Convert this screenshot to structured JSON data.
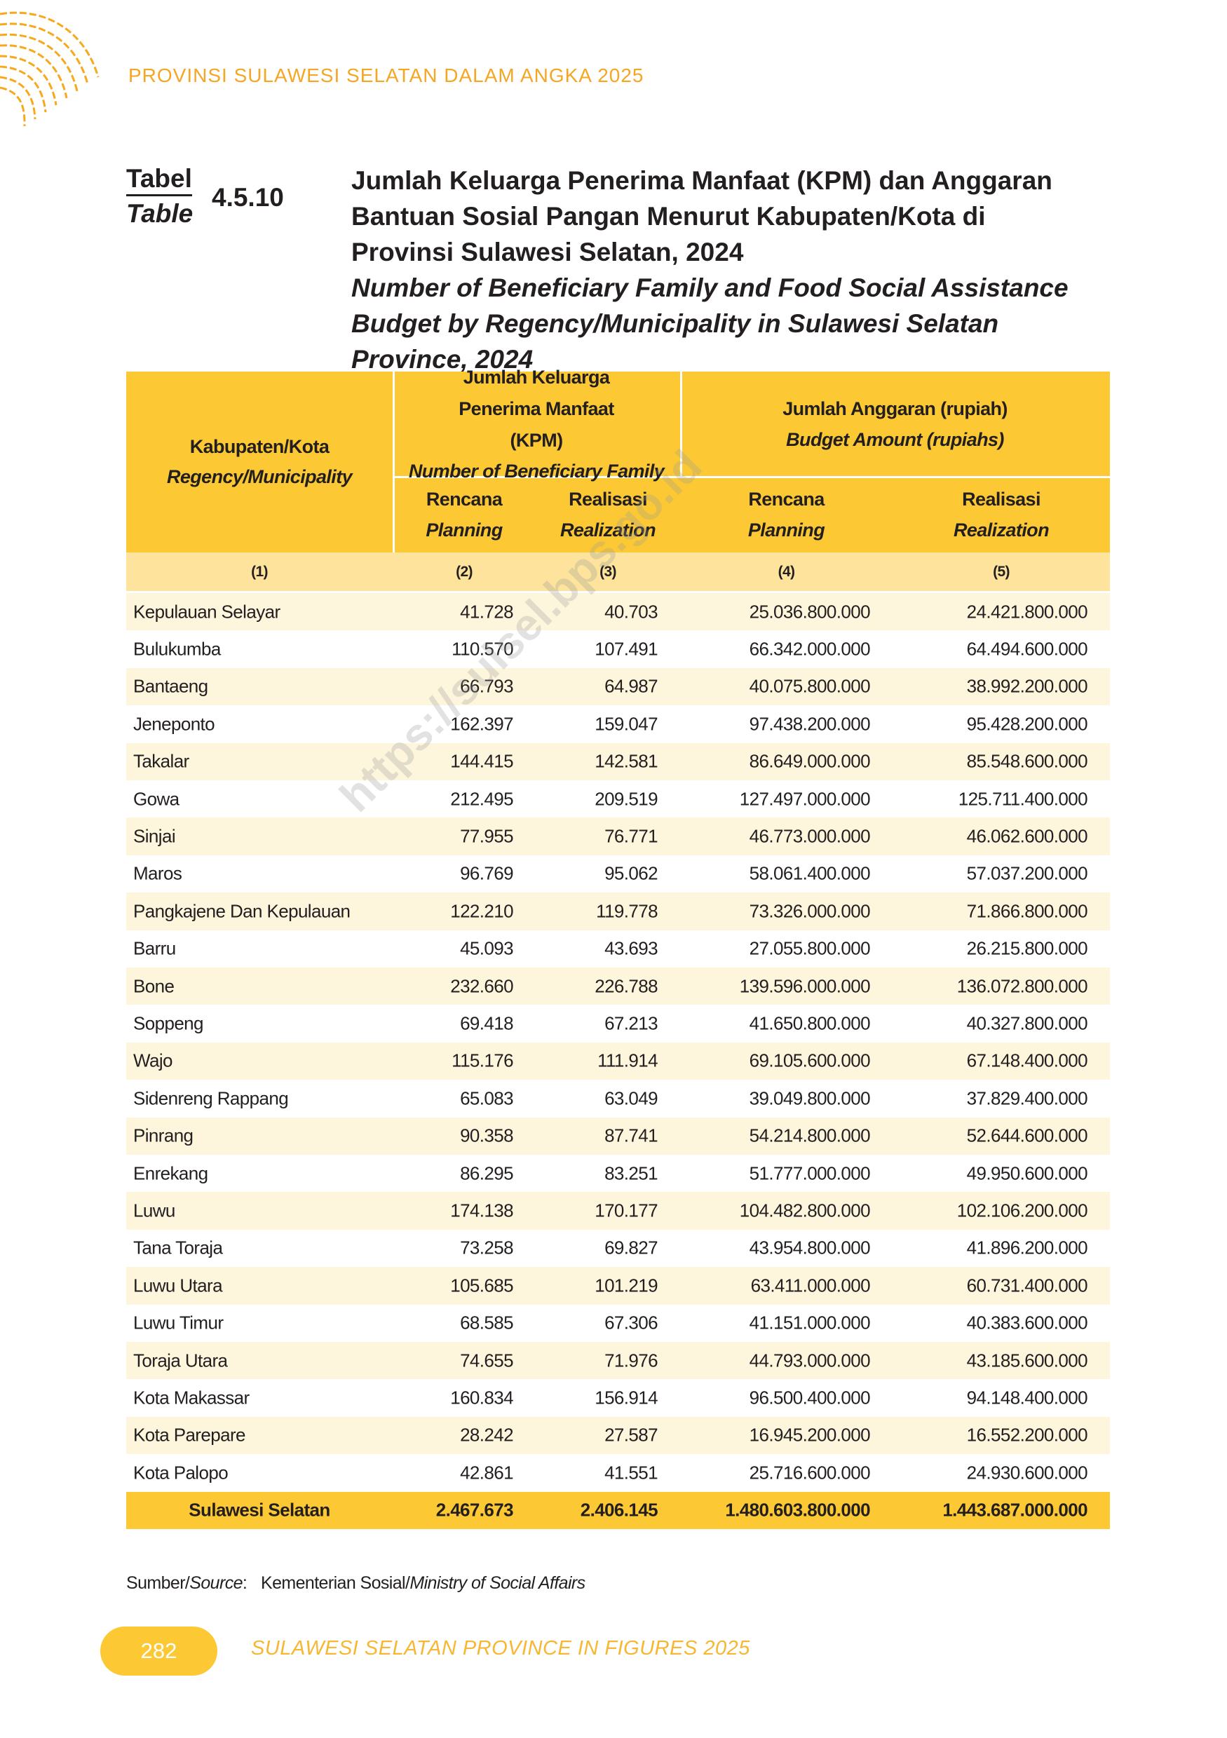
{
  "header": {
    "running_title": "PROVINSI SULAWESI SELATAN DALAM ANGKA 2025"
  },
  "table_label": {
    "id_word": "Tabel",
    "en_word": "Table",
    "number": "4.5.10"
  },
  "title": {
    "id_lines": [
      "Jumlah Keluarga Penerima Manfaat (KPM) dan Anggaran",
      "Bantuan Sosial Pangan Menurut Kabupaten/Kota di",
      "Provinsi Sulawesi Selatan, 2024"
    ],
    "en_lines": [
      "Number of Beneficiary Family and Food Social Assistance",
      "Budget by Regency/Municipality in Sulawesi Selatan",
      "Province, 2024"
    ]
  },
  "table": {
    "head": {
      "region": {
        "id": "Kabupaten/Kota",
        "en": "Regency/Municipality"
      },
      "kpm": {
        "id": "Jumlah Keluarga Penerima Manfaat (KPM)",
        "en": "Number of Beneficiary Family"
      },
      "budget": {
        "id": "Jumlah Anggaran (rupiah)",
        "en": "Budget Amount (rupiahs)"
      },
      "sub": [
        {
          "id": "Rencana",
          "en": "Planning"
        },
        {
          "id": "Realisasi",
          "en": "Realization"
        },
        {
          "id": "Rencana",
          "en": "Planning"
        },
        {
          "id": "Realisasi",
          "en": "Realization"
        }
      ]
    },
    "column_numbers": [
      "(1)",
      "(2)",
      "(3)",
      "(4)",
      "(5)"
    ],
    "rows": [
      [
        "Kepulauan Selayar",
        "41.728",
        "40.703",
        "25.036.800.000",
        "24.421.800.000"
      ],
      [
        "Bulukumba",
        "110.570",
        "107.491",
        "66.342.000.000",
        "64.494.600.000"
      ],
      [
        "Bantaeng",
        "66.793",
        "64.987",
        "40.075.800.000",
        "38.992.200.000"
      ],
      [
        "Jeneponto",
        "162.397",
        "159.047",
        "97.438.200.000",
        "95.428.200.000"
      ],
      [
        "Takalar",
        "144.415",
        "142.581",
        "86.649.000.000",
        "85.548.600.000"
      ],
      [
        "Gowa",
        "212.495",
        "209.519",
        "127.497.000.000",
        "125.711.400.000"
      ],
      [
        "Sinjai",
        "77.955",
        "76.771",
        "46.773.000.000",
        "46.062.600.000"
      ],
      [
        "Maros",
        "96.769",
        "95.062",
        "58.061.400.000",
        "57.037.200.000"
      ],
      [
        "Pangkajene Dan Kepulauan",
        "122.210",
        "119.778",
        "73.326.000.000",
        "71.866.800.000"
      ],
      [
        "Barru",
        "45.093",
        "43.693",
        "27.055.800.000",
        "26.215.800.000"
      ],
      [
        "Bone",
        "232.660",
        "226.788",
        "139.596.000.000",
        "136.072.800.000"
      ],
      [
        "Soppeng",
        "69.418",
        "67.213",
        "41.650.800.000",
        "40.327.800.000"
      ],
      [
        "Wajo",
        "115.176",
        "111.914",
        "69.105.600.000",
        "67.148.400.000"
      ],
      [
        "Sidenreng Rappang",
        "65.083",
        "63.049",
        "39.049.800.000",
        "37.829.400.000"
      ],
      [
        "Pinrang",
        "90.358",
        "87.741",
        "54.214.800.000",
        "52.644.600.000"
      ],
      [
        "Enrekang",
        "86.295",
        "83.251",
        "51.777.000.000",
        "49.950.600.000"
      ],
      [
        "Luwu",
        "174.138",
        "170.177",
        "104.482.800.000",
        "102.106.200.000"
      ],
      [
        "Tana Toraja",
        "73.258",
        "69.827",
        "43.954.800.000",
        "41.896.200.000"
      ],
      [
        "Luwu Utara",
        "105.685",
        "101.219",
        "63.411.000.000",
        "60.731.400.000"
      ],
      [
        "Luwu Timur",
        "68.585",
        "67.306",
        "41.151.000.000",
        "40.383.600.000"
      ],
      [
        "Toraja Utara",
        "74.655",
        "71.976",
        "44.793.000.000",
        "43.185.600.000"
      ],
      [
        "Kota Makassar",
        "160.834",
        "156.914",
        "96.500.400.000",
        "94.148.400.000"
      ],
      [
        "Kota Parepare",
        "28.242",
        "27.587",
        "16.945.200.000",
        "16.552.200.000"
      ],
      [
        "Kota Palopo",
        "42.861",
        "41.551",
        "25.716.600.000",
        "24.930.600.000"
      ]
    ],
    "total": [
      "Sulawesi Selatan",
      "2.467.673",
      "2.406.145",
      "1.480.603.800.000",
      "1.443.687.000.000"
    ]
  },
  "source": {
    "label_id": "Sumber/",
    "label_en": "Source",
    "separator": ":",
    "value_id": "Kementerian Sosial/",
    "value_en": "Ministry of Social Affairs"
  },
  "watermark": "https://sulsel.bps.go.id",
  "footer": {
    "page": "282",
    "title": "SULAWESI SELATAN PROVINCE IN FIGURES 2025"
  }
}
